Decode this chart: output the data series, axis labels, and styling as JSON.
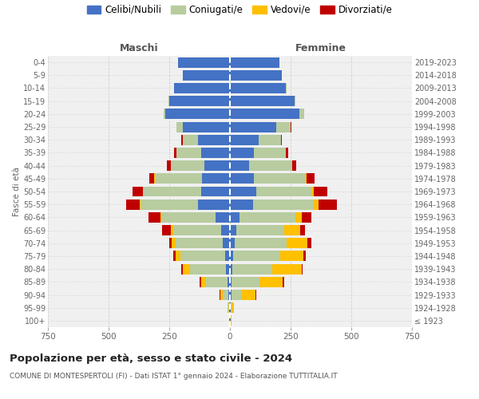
{
  "age_groups": [
    "100+",
    "95-99",
    "90-94",
    "85-89",
    "80-84",
    "75-79",
    "70-74",
    "65-69",
    "60-64",
    "55-59",
    "50-54",
    "45-49",
    "40-44",
    "35-39",
    "30-34",
    "25-29",
    "20-24",
    "15-19",
    "10-14",
    "5-9",
    "0-4"
  ],
  "birth_years": [
    "≤ 1923",
    "1924-1928",
    "1929-1933",
    "1934-1938",
    "1939-1943",
    "1944-1948",
    "1949-1953",
    "1954-1958",
    "1959-1963",
    "1964-1968",
    "1969-1973",
    "1974-1978",
    "1979-1983",
    "1984-1988",
    "1989-1993",
    "1994-1998",
    "1999-2003",
    "2004-2008",
    "2009-2013",
    "2014-2018",
    "2019-2023"
  ],
  "males": {
    "celibe": [
      2,
      2,
      5,
      10,
      15,
      20,
      30,
      35,
      60,
      130,
      120,
      115,
      105,
      120,
      130,
      195,
      265,
      250,
      230,
      195,
      215
    ],
    "coniugato": [
      2,
      5,
      25,
      90,
      150,
      185,
      195,
      200,
      220,
      240,
      235,
      195,
      140,
      100,
      65,
      25,
      8,
      3,
      1,
      0,
      0
    ],
    "vedovo": [
      0,
      2,
      10,
      20,
      30,
      20,
      15,
      8,
      5,
      3,
      2,
      1,
      0,
      0,
      0,
      0,
      0,
      0,
      0,
      0,
      0
    ],
    "divorziato": [
      0,
      0,
      2,
      5,
      5,
      8,
      10,
      35,
      50,
      55,
      45,
      20,
      15,
      10,
      5,
      2,
      1,
      0,
      0,
      0,
      0
    ]
  },
  "females": {
    "nubile": [
      2,
      3,
      5,
      8,
      10,
      12,
      20,
      25,
      40,
      95,
      110,
      100,
      80,
      100,
      120,
      190,
      285,
      265,
      230,
      215,
      205
    ],
    "coniugata": [
      2,
      5,
      40,
      115,
      165,
      195,
      215,
      200,
      230,
      250,
      225,
      210,
      175,
      130,
      90,
      60,
      20,
      5,
      2,
      0,
      0
    ],
    "vedova": [
      3,
      10,
      60,
      95,
      120,
      95,
      85,
      65,
      25,
      20,
      10,
      5,
      2,
      1,
      0,
      0,
      0,
      0,
      0,
      0,
      0
    ],
    "divorziata": [
      0,
      0,
      2,
      5,
      5,
      10,
      15,
      20,
      40,
      75,
      55,
      35,
      15,
      10,
      5,
      2,
      1,
      0,
      0,
      0,
      0
    ]
  },
  "colors": {
    "celibe": "#4472c4",
    "coniugato": "#b8cca0",
    "vedovo": "#ffc000",
    "divorziato": "#c00000"
  },
  "xlim": 750,
  "title": "Popolazione per età, sesso e stato civile - 2024",
  "subtitle": "COMUNE DI MONTESPERTOLI (FI) - Dati ISTAT 1° gennaio 2024 - Elaborazione TUTTITALIA.IT",
  "legend_labels": [
    "Celibi/Nubili",
    "Coniugati/e",
    "Vedovi/e",
    "Divorziati/e"
  ],
  "background_color": "#ffffff",
  "plot_bg": "#f0f0f0",
  "grid_color": "#cccccc"
}
